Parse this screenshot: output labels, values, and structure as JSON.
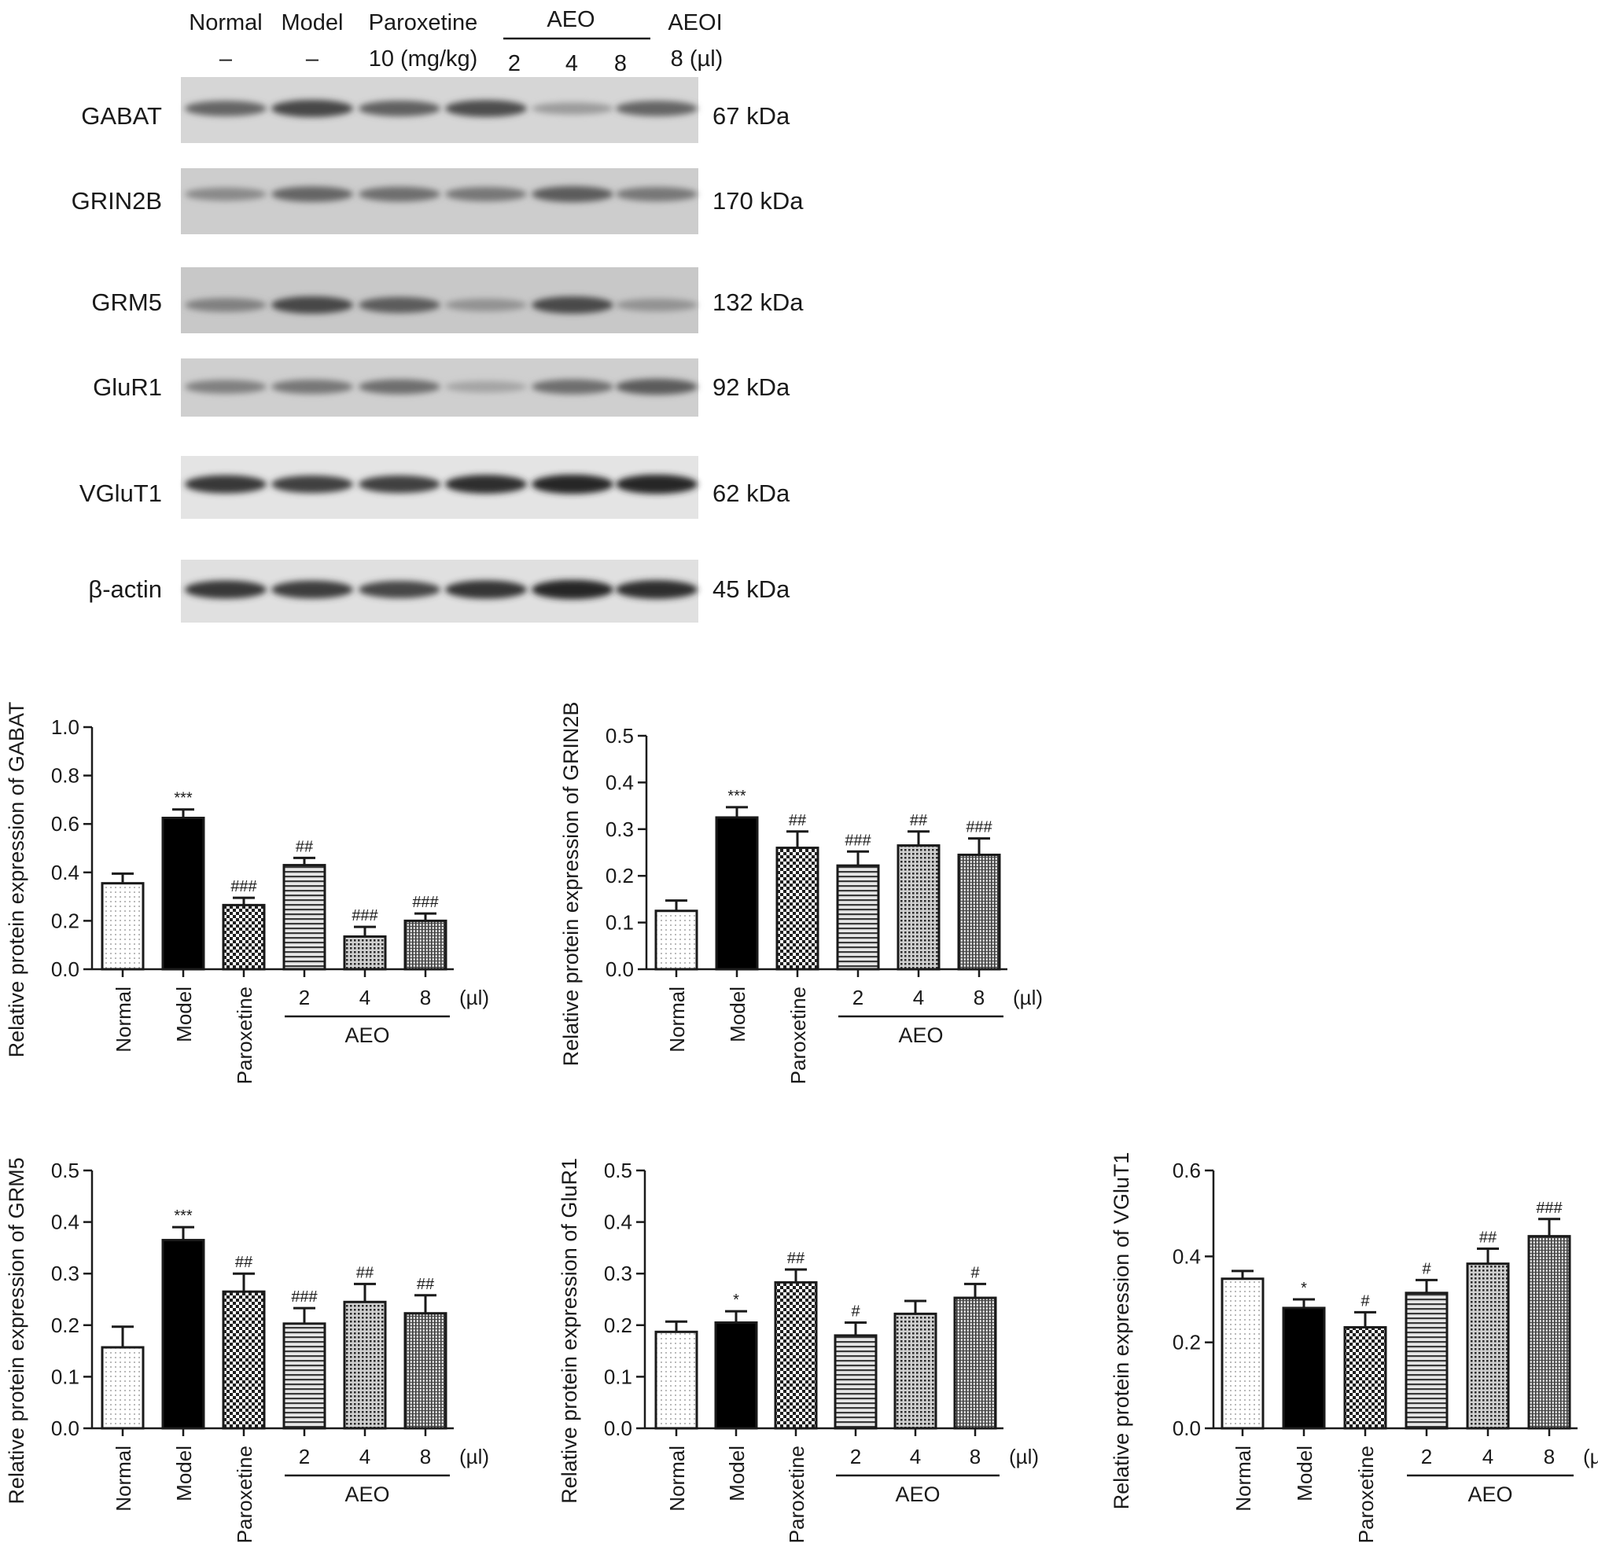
{
  "blot": {
    "header": {
      "normal": "Normal",
      "model": "Model",
      "paroxetine": "Paroxetine",
      "aeo": "AEO",
      "aeoi": "AEOI",
      "normal_dose": "–",
      "model_dose": "–",
      "paroxetine_dose": "10 (mg/kg)",
      "aeo_doses": [
        "2",
        "4",
        "8"
      ],
      "aeoi_dose": "8 (µl)"
    },
    "rows": [
      {
        "protein": "GABAT",
        "kda": "67 kDa",
        "intensity": [
          0.55,
          0.72,
          0.58,
          0.68,
          0.25,
          0.55
        ]
      },
      {
        "protein": "GRIN2B",
        "kda": "170 kDa",
        "intensity": [
          0.35,
          0.55,
          0.5,
          0.45,
          0.6,
          0.45
        ]
      },
      {
        "protein": "GRM5",
        "kda": "132 kDa",
        "intensity": [
          0.4,
          0.72,
          0.6,
          0.3,
          0.7,
          0.3
        ]
      },
      {
        "protein": "GluR1",
        "kda": "92 kDa",
        "intensity": [
          0.4,
          0.45,
          0.5,
          0.2,
          0.5,
          0.6
        ]
      },
      {
        "protein": "VGluT1",
        "kda": "62 kDa",
        "intensity": [
          0.8,
          0.75,
          0.75,
          0.85,
          0.9,
          0.9
        ]
      },
      {
        "protein": "β-actin",
        "kda": "45 kDa",
        "intensity": [
          0.8,
          0.78,
          0.72,
          0.82,
          0.9,
          0.85
        ]
      }
    ]
  },
  "chart_data": [
    {
      "type": "bar",
      "ylabel": "Relative protein expression of GABAT",
      "categories": [
        "Normal",
        "Model",
        "Paroxetine",
        "2",
        "4",
        "8"
      ],
      "values": [
        0.355,
        0.625,
        0.265,
        0.43,
        0.135,
        0.2
      ],
      "errors": [
        0.04,
        0.035,
        0.03,
        0.03,
        0.04,
        0.03
      ],
      "annotations": [
        "",
        "***",
        "###",
        "##",
        "###",
        "###"
      ],
      "ylim": [
        0,
        1.0
      ],
      "yticks": [
        "0.0",
        "0.2",
        "0.4",
        "0.6",
        "0.8",
        "1.0"
      ],
      "group_label": "AEO",
      "unit_label": "(µl)"
    },
    {
      "type": "bar",
      "ylabel": "Relative protein expression of GRIN2B",
      "categories": [
        "Normal",
        "Model",
        "Paroxetine",
        "2",
        "4",
        "8"
      ],
      "values": [
        0.125,
        0.325,
        0.26,
        0.222,
        0.265,
        0.245
      ],
      "errors": [
        0.022,
        0.022,
        0.035,
        0.03,
        0.03,
        0.035
      ],
      "annotations": [
        "",
        "***",
        "##",
        "###",
        "##",
        "###"
      ],
      "ylim": [
        0,
        0.5
      ],
      "yticks": [
        "0.0",
        "0.1",
        "0.2",
        "0.3",
        "0.4",
        "0.5"
      ],
      "group_label": "AEO",
      "unit_label": "(µl)"
    },
    {
      "type": "bar",
      "ylabel": "Relative protein expression of GRM5",
      "categories": [
        "Normal",
        "Model",
        "Paroxetine",
        "2",
        "4",
        "8"
      ],
      "values": [
        0.157,
        0.365,
        0.265,
        0.203,
        0.245,
        0.223
      ],
      "errors": [
        0.04,
        0.025,
        0.035,
        0.03,
        0.035,
        0.035
      ],
      "annotations": [
        "",
        "***",
        "##",
        "###",
        "##",
        "##"
      ],
      "ylim": [
        0,
        0.5
      ],
      "yticks": [
        "0.0",
        "0.1",
        "0.2",
        "0.3",
        "0.4",
        "0.5"
      ],
      "group_label": "AEO",
      "unit_label": "(µl)"
    },
    {
      "type": "bar",
      "ylabel": "Relative protein expression of GluR1",
      "categories": [
        "Normal",
        "Model",
        "Paroxetine",
        "2",
        "4",
        "8"
      ],
      "values": [
        0.187,
        0.205,
        0.283,
        0.18,
        0.222,
        0.253
      ],
      "errors": [
        0.02,
        0.022,
        0.025,
        0.025,
        0.025,
        0.027
      ],
      "annotations": [
        "",
        "*",
        "##",
        "#",
        "",
        "#"
      ],
      "ylim": [
        0,
        0.5
      ],
      "yticks": [
        "0.0",
        "0.1",
        "0.2",
        "0.3",
        "0.4",
        "0.5"
      ],
      "group_label": "AEO",
      "unit_label": "(µl)"
    },
    {
      "type": "bar",
      "ylabel": "Relative protein expression of VGluT1",
      "categories": [
        "Normal",
        "Model",
        "Paroxetine",
        "2",
        "4",
        "8"
      ],
      "values": [
        0.348,
        0.28,
        0.235,
        0.315,
        0.383,
        0.447
      ],
      "errors": [
        0.018,
        0.02,
        0.035,
        0.03,
        0.035,
        0.04
      ],
      "annotations": [
        "",
        "*",
        "#",
        "#",
        "##",
        "###"
      ],
      "ylim": [
        0,
        0.6
      ],
      "yticks": [
        "0.0",
        "0.2",
        "0.4",
        "0.6"
      ],
      "group_label": "AEO",
      "unit_label": "(µl)"
    }
  ]
}
